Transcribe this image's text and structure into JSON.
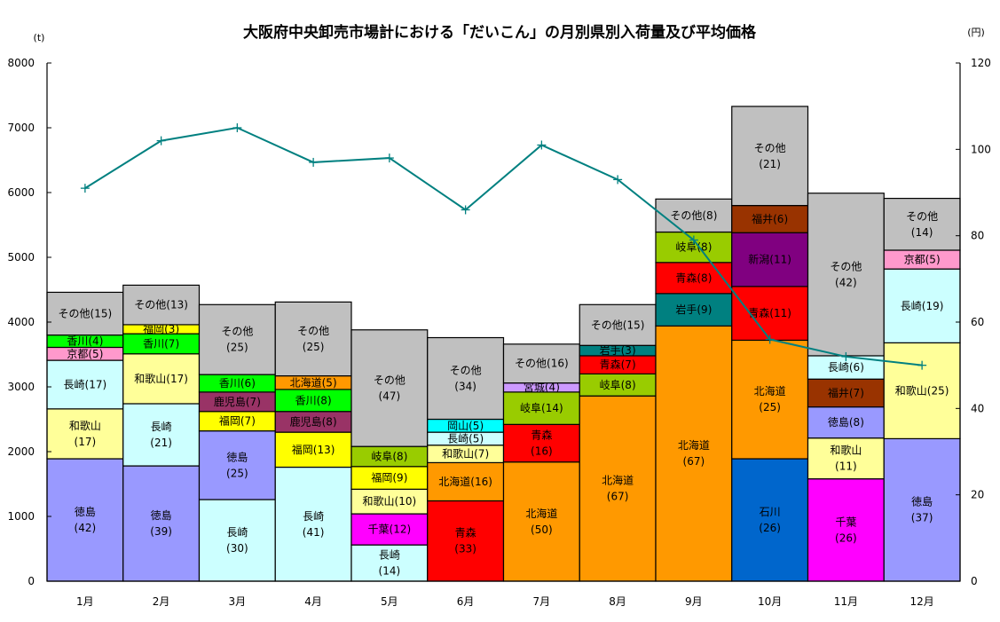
{
  "chart_data": {
    "type": "bar",
    "stacked": true,
    "title": "大阪府中央卸売市場計における「だいこん」の月別県別入荷量及び平均価格",
    "xlabel": "",
    "ylabel": "(t)",
    "y2label": "(円)",
    "ylim": [
      0,
      8000
    ],
    "y2lim": [
      0,
      120
    ],
    "yticks": [
      "0",
      "1000",
      "2000",
      "3000",
      "4000",
      "5000",
      "6000",
      "7000",
      "8000"
    ],
    "y2ticks": [
      "0",
      "20",
      "40",
      "60",
      "80",
      "100",
      "120"
    ],
    "grid": false,
    "legend": "none",
    "categories": [
      "1月",
      "2月",
      "3月",
      "4月",
      "5月",
      "6月",
      "7月",
      "8月",
      "9月",
      "10月",
      "11月",
      "12月"
    ],
    "colors": {
      "徳島": "#9999ff",
      "和歌山": "#ffff99",
      "長崎": "#ccffff",
      "京都": "#ff99cc",
      "香川": "#00ff00",
      "福岡": "#ffff00",
      "鹿児島": "#993366",
      "北海道": "#ff9900",
      "千葉": "#ff00ff",
      "岐阜": "#99cc00",
      "青森": "#ff0000",
      "岡山": "#00ffff",
      "宮城": "#cc99ff",
      "岩手": "#008080",
      "石川": "#0066cc",
      "新潟": "#800080",
      "福井": "#993300",
      "その他": "#c0c0c0"
    },
    "stacks": [
      {
        "month": "1月",
        "segments": [
          {
            "origin": "徳島",
            "share": 42,
            "tons": 1890,
            "label_lines": [
              "徳島",
              "(42)"
            ]
          },
          {
            "origin": "和歌山",
            "share": 17,
            "tons": 770,
            "label_lines": [
              "和歌山",
              "(17)"
            ]
          },
          {
            "origin": "長崎",
            "share": 17,
            "tons": 750,
            "label_lines": [
              "長崎(17)"
            ]
          },
          {
            "origin": "京都",
            "share": 5,
            "tons": 200,
            "label_lines": [
              "京都(5)"
            ]
          },
          {
            "origin": "香川",
            "share": 4,
            "tons": 190,
            "label_lines": [
              "香川(4)"
            ]
          },
          {
            "origin": "その他",
            "share": 15,
            "tons": 660,
            "label_lines": [
              "その他(15)"
            ]
          }
        ]
      },
      {
        "month": "2月",
        "segments": [
          {
            "origin": "徳島",
            "share": 39,
            "tons": 1780,
            "label_lines": [
              "徳島",
              "(39)"
            ]
          },
          {
            "origin": "長崎",
            "share": 21,
            "tons": 960,
            "label_lines": [
              "長崎",
              "(21)"
            ]
          },
          {
            "origin": "和歌山",
            "share": 17,
            "tons": 770,
            "label_lines": [
              "和歌山(17)"
            ]
          },
          {
            "origin": "香川",
            "share": 7,
            "tons": 310,
            "label_lines": [
              "香川(7)"
            ]
          },
          {
            "origin": "福岡",
            "share": 3,
            "tons": 140,
            "label_lines": [
              "福岡(3)"
            ]
          },
          {
            "origin": "その他",
            "share": 13,
            "tons": 610,
            "label_lines": [
              "その他(13)"
            ]
          }
        ]
      },
      {
        "month": "3月",
        "segments": [
          {
            "origin": "長崎",
            "share": 30,
            "tons": 1260,
            "label_lines": [
              "長崎",
              "(30)"
            ]
          },
          {
            "origin": "徳島",
            "share": 25,
            "tons": 1060,
            "label_lines": [
              "徳島",
              "(25)"
            ]
          },
          {
            "origin": "福岡",
            "share": 7,
            "tons": 300,
            "label_lines": [
              "福岡(7)"
            ]
          },
          {
            "origin": "鹿児島",
            "share": 7,
            "tons": 300,
            "label_lines": [
              "鹿児島(7)"
            ]
          },
          {
            "origin": "香川",
            "share": 6,
            "tons": 270,
            "label_lines": [
              "香川(6)"
            ]
          },
          {
            "origin": "その他",
            "share": 25,
            "tons": 1080,
            "label_lines": [
              "その他",
              "(25)"
            ]
          }
        ]
      },
      {
        "month": "4月",
        "segments": [
          {
            "origin": "長崎",
            "share": 41,
            "tons": 1760,
            "label_lines": [
              "長崎",
              "(41)"
            ]
          },
          {
            "origin": "福岡",
            "share": 13,
            "tons": 540,
            "label_lines": [
              "福岡(13)"
            ]
          },
          {
            "origin": "鹿児島",
            "share": 8,
            "tons": 320,
            "label_lines": [
              "鹿児島(8)"
            ]
          },
          {
            "origin": "香川",
            "share": 8,
            "tons": 340,
            "label_lines": [
              "香川(8)"
            ]
          },
          {
            "origin": "北海道",
            "share": 5,
            "tons": 210,
            "label_lines": [
              "北海道(5)"
            ]
          },
          {
            "origin": "その他",
            "share": 25,
            "tons": 1140,
            "label_lines": [
              "その他",
              "(25)"
            ]
          }
        ]
      },
      {
        "month": "5月",
        "segments": [
          {
            "origin": "長崎",
            "share": 14,
            "tons": 560,
            "label_lines": [
              "長崎",
              "(14)"
            ]
          },
          {
            "origin": "千葉",
            "share": 12,
            "tons": 480,
            "label_lines": [
              "千葉(12)"
            ]
          },
          {
            "origin": "和歌山",
            "share": 10,
            "tons": 380,
            "label_lines": [
              "和歌山(10)"
            ]
          },
          {
            "origin": "福岡",
            "share": 9,
            "tons": 350,
            "label_lines": [
              "福岡(9)"
            ]
          },
          {
            "origin": "岐阜",
            "share": 8,
            "tons": 310,
            "label_lines": [
              "岐阜(8)"
            ]
          },
          {
            "origin": "その他",
            "share": 47,
            "tons": 1800,
            "label_lines": [
              "その他",
              "(47)"
            ]
          }
        ]
      },
      {
        "month": "6月",
        "segments": [
          {
            "origin": "青森",
            "share": 33,
            "tons": 1240,
            "label_lines": [
              "青森",
              "(33)"
            ]
          },
          {
            "origin": "北海道",
            "share": 16,
            "tons": 590,
            "label_lines": [
              "北海道(16)"
            ]
          },
          {
            "origin": "和歌山",
            "share": 7,
            "tons": 270,
            "label_lines": [
              "和歌山(7)"
            ]
          },
          {
            "origin": "長崎",
            "share": 5,
            "tons": 200,
            "label_lines": [
              "長崎(5)"
            ]
          },
          {
            "origin": "岡山",
            "share": 5,
            "tons": 200,
            "label_lines": [
              "岡山(5)"
            ]
          },
          {
            "origin": "その他",
            "share": 34,
            "tons": 1260,
            "label_lines": [
              "その他",
              "(34)"
            ]
          }
        ]
      },
      {
        "month": "7月",
        "segments": [
          {
            "origin": "北海道",
            "share": 50,
            "tons": 1840,
            "label_lines": [
              "北海道",
              "(50)"
            ]
          },
          {
            "origin": "青森",
            "share": 16,
            "tons": 580,
            "label_lines": [
              "青森",
              "(16)"
            ]
          },
          {
            "origin": "岐阜",
            "share": 14,
            "tons": 500,
            "label_lines": [
              "岐阜(14)"
            ]
          },
          {
            "origin": "宮城",
            "share": 4,
            "tons": 140,
            "label_lines": [
              "宮城(4)"
            ]
          },
          {
            "origin": "その他",
            "share": 16,
            "tons": 600,
            "label_lines": [
              "その他(16)"
            ]
          }
        ]
      },
      {
        "month": "8月",
        "segments": [
          {
            "origin": "北海道",
            "share": 67,
            "tons": 2860,
            "label_lines": [
              "北海道",
              "(67)"
            ]
          },
          {
            "origin": "岐阜",
            "share": 8,
            "tons": 340,
            "label_lines": [
              "岐阜(8)"
            ]
          },
          {
            "origin": "青森",
            "share": 7,
            "tons": 280,
            "label_lines": [
              "青森(7)"
            ]
          },
          {
            "origin": "岩手",
            "share": 3,
            "tons": 160,
            "label_lines": [
              "岩手(3)"
            ]
          },
          {
            "origin": "その他",
            "share": 15,
            "tons": 630,
            "label_lines": [
              "その他(15)"
            ]
          }
        ]
      },
      {
        "month": "9月",
        "segments": [
          {
            "origin": "北海道",
            "share": 67,
            "tons": 3940,
            "label_lines": [
              "北海道",
              "(67)"
            ]
          },
          {
            "origin": "岩手",
            "share": 9,
            "tons": 500,
            "label_lines": [
              "岩手(9)"
            ]
          },
          {
            "origin": "青森",
            "share": 8,
            "tons": 480,
            "label_lines": [
              "青森(8)"
            ]
          },
          {
            "origin": "岐阜",
            "share": 8,
            "tons": 470,
            "label_lines": [
              "岐阜(8)"
            ]
          },
          {
            "origin": "その他",
            "share": 8,
            "tons": 510,
            "label_lines": [
              "その他(8)"
            ]
          }
        ]
      },
      {
        "month": "10月",
        "segments": [
          {
            "origin": "石川",
            "share": 26,
            "tons": 1890,
            "label_lines": [
              "石川",
              "(26)"
            ]
          },
          {
            "origin": "北海道",
            "share": 25,
            "tons": 1830,
            "label_lines": [
              "北海道",
              "(25)"
            ]
          },
          {
            "origin": "青森",
            "share": 11,
            "tons": 830,
            "label_lines": [
              "青森(11)"
            ]
          },
          {
            "origin": "新潟",
            "share": 11,
            "tons": 830,
            "label_lines": [
              "新潟(11)"
            ]
          },
          {
            "origin": "福井",
            "share": 6,
            "tons": 420,
            "label_lines": [
              "福井(6)"
            ]
          },
          {
            "origin": "その他",
            "share": 21,
            "tons": 1530,
            "label_lines": [
              "その他",
              "(21)"
            ]
          }
        ]
      },
      {
        "month": "11月",
        "segments": [
          {
            "origin": "千葉",
            "share": 26,
            "tons": 1580,
            "label_lines": [
              "千葉",
              "(26)"
            ]
          },
          {
            "origin": "和歌山",
            "share": 11,
            "tons": 630,
            "label_lines": [
              "和歌山",
              "(11)"
            ]
          },
          {
            "origin": "徳島",
            "share": 8,
            "tons": 480,
            "label_lines": [
              "徳島(8)"
            ]
          },
          {
            "origin": "福井",
            "share": 7,
            "tons": 430,
            "label_lines": [
              "福井(7)"
            ]
          },
          {
            "origin": "長崎",
            "share": 6,
            "tons": 360,
            "label_lines": [
              "長崎(6)"
            ]
          },
          {
            "origin": "その他",
            "share": 42,
            "tons": 2510,
            "label_lines": [
              "その他",
              "(42)"
            ]
          }
        ]
      },
      {
        "month": "12月",
        "segments": [
          {
            "origin": "徳島",
            "share": 37,
            "tons": 2200,
            "label_lines": [
              "徳島",
              "(37)"
            ]
          },
          {
            "origin": "和歌山",
            "share": 25,
            "tons": 1480,
            "label_lines": [
              "和歌山(25)"
            ]
          },
          {
            "origin": "長崎",
            "share": 19,
            "tons": 1140,
            "label_lines": [
              "長崎(19)"
            ]
          },
          {
            "origin": "京都",
            "share": 5,
            "tons": 290,
            "label_lines": [
              "京都(5)"
            ]
          },
          {
            "origin": "その他",
            "share": 14,
            "tons": 800,
            "label_lines": [
              "その他",
              "(14)"
            ]
          }
        ]
      }
    ],
    "line_series": {
      "name": "平均価格",
      "axis": "right",
      "color": "#008080",
      "marker": "plus",
      "values": [
        91,
        102,
        105,
        97,
        98,
        86,
        101,
        93,
        79,
        56,
        52,
        50
      ]
    }
  }
}
